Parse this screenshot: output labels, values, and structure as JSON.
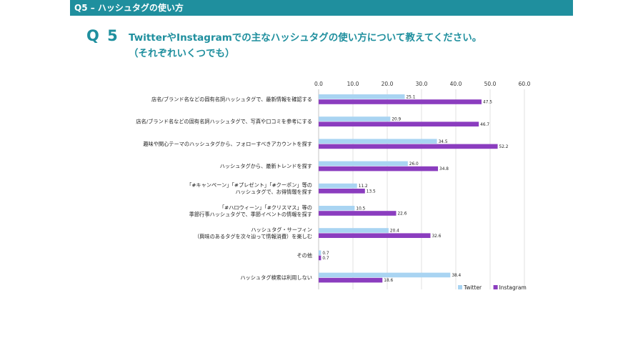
{
  "header": {
    "title": "Q5 – ハッシュタグの使い方"
  },
  "question": {
    "label": "Q 5",
    "line1": "TwitterやInstagramでの主なハッシュタグの使い方について教えてください。",
    "line2": "（それぞれいくつでも）"
  },
  "colors": {
    "header": "#1f8f9e",
    "twitter": "#a9d4f2",
    "instagram": "#8b3dbf"
  },
  "chart_data": {
    "type": "bar",
    "orientation": "horizontal",
    "xlim": [
      0,
      60
    ],
    "ticks": [
      "0.0",
      "10.0",
      "20.0",
      "30.0",
      "40.0",
      "50.0",
      "60.0"
    ],
    "grid": true,
    "legend_position": "bottom-right",
    "categories": [
      [
        "店名/ブランド名などの固有名詞ハッシュタグで、最新情報を確認する"
      ],
      [
        "店名/ブランド名などの固有名詞ハッシュタグで、写真や口コミを参考にする"
      ],
      [
        "趣味や関心テーマのハッシュタグから、フォローすべきアカウントを探す"
      ],
      [
        "ハッシュタグから、最新トレンドを探す"
      ],
      [
        "「#キャンペーン」「#プレゼント」「#クーポン」等の",
        "ハッシュタグで、お得情報を探す"
      ],
      [
        "「#ハロウィーン」「#クリスマス」等の",
        "季節行事ハッシュタグで、季節イベントの情報を探す"
      ],
      [
        "ハッシュタグ・サーフィン",
        "（興味のあるタグを次々辿って情報消費）を楽しむ"
      ],
      [
        "その他"
      ],
      [
        "ハッシュタグ検索は利用しない"
      ]
    ],
    "series": [
      {
        "name": "Twitter",
        "color": "#a9d4f2",
        "values": [
          25.1,
          20.9,
          34.5,
          26.0,
          11.2,
          10.5,
          20.4,
          0.7,
          38.4
        ],
        "labels": [
          "25.1",
          "20.9",
          "34.5",
          "26.0",
          "11.2",
          "10.5",
          "20.4",
          "0.7",
          "38.4"
        ]
      },
      {
        "name": "Instagram",
        "color": "#8b3dbf",
        "values": [
          47.5,
          46.7,
          52.2,
          34.8,
          13.5,
          22.6,
          32.6,
          0.7,
          18.6
        ],
        "labels": [
          "47.5",
          "46.7",
          "52.2",
          "34.8",
          "13.5",
          "22.6",
          "32.6",
          "0.7",
          "18.6"
        ]
      }
    ]
  }
}
